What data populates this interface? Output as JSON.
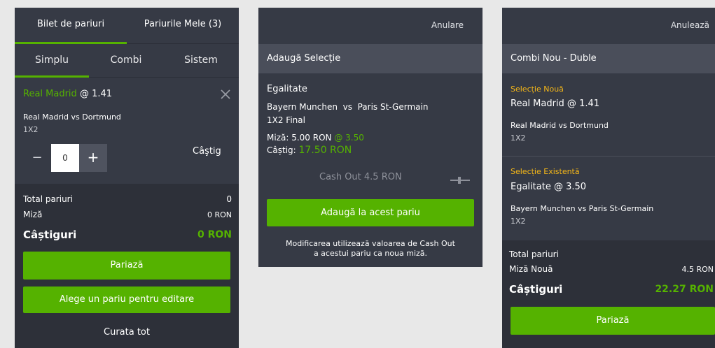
{
  "panel1": {
    "tabs": [
      {
        "label": "Bilet de pariuri",
        "active": true
      },
      {
        "label": "Pariurile Mele (3)",
        "active": false
      }
    ],
    "subtabs": [
      {
        "label": "Simplu",
        "active": true
      },
      {
        "label": "Combi",
        "active": false
      },
      {
        "label": "Sistem",
        "active": false
      }
    ],
    "selection": {
      "team": "Real Madrid",
      "odds": "@ 1.41",
      "match": "Real Madrid vs Dortmund",
      "market": "1X2"
    },
    "stake": {
      "minus": "−",
      "value": "0",
      "plus": "+"
    },
    "win_label": "Câştig",
    "summary": {
      "total_label": "Total pariuri",
      "total_value": "0",
      "stake_label": "Miză",
      "stake_value": "0 RON",
      "winnings_label": "Câștiguri",
      "winnings_value": "0 RON"
    },
    "place_button": "Pariază",
    "edit_button": "Alege un pariu pentru editare",
    "clear_all": "Curata tot"
  },
  "panel2": {
    "cancel": "Anulare",
    "header": "Adaugă Selecție",
    "selection_name": "Egalitate",
    "match": "Bayern Munchen  vs  Paris St-Germain",
    "market": "1X2 Final",
    "stake_text": "Miză: 5.00 RON",
    "stake_odds": "@ 3.50",
    "win_label": "Câștig:",
    "win_value": "17.50 RON",
    "cashout": "Cash Out 4.5 RON",
    "add_button": "Adaugă la acest pariu",
    "note_line1": "Modificarea utilizează valoarea de Cash Out",
    "note_line2": "a acestui pariu ca noua miză."
  },
  "panel3": {
    "cancel": "Anulează",
    "header": "Combi Nou - Duble",
    "new_tag": "Selecție Nouă",
    "new_selection": "Real Madrid @ 1.41",
    "new_match": "Real Madrid vs Dortmund",
    "new_market": "1X2",
    "existing_tag": "Selecție Existentă",
    "existing_selection": "Egalitate @ 3.50",
    "existing_match": "Bayern Munchen vs Paris St-Germain",
    "existing_market": "1X2",
    "summary": {
      "total_label": "Total pariuri",
      "stake_label": "Miză Nouă",
      "stake_value": "4.5 RON",
      "winnings_label": "Câștiguri",
      "winnings_value": "22.27 RON"
    },
    "place_button": "Pariază"
  },
  "colors": {
    "panel": "#363a45",
    "header_bar": "#4a4e5a",
    "footer": "#2d3039",
    "accent_green": "#55b200",
    "tag_yellow": "#f5b718"
  }
}
